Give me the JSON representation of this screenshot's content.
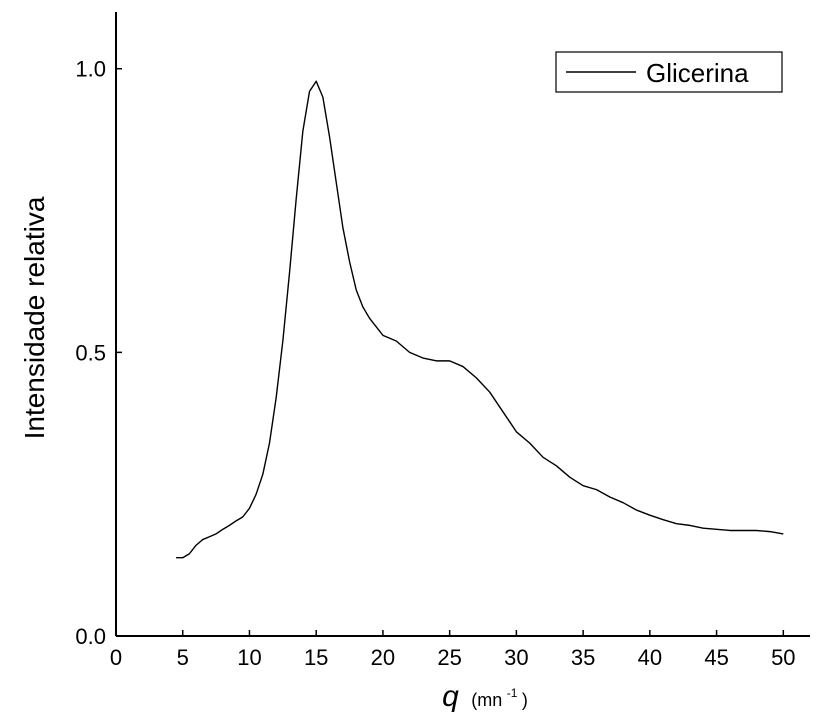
{
  "chart_data": {
    "type": "line",
    "title": "",
    "xlabel": "q",
    "xlabel_unit": "(mn",
    "xlabel_unit_sup": "-1",
    "xlabel_unit_close": ")",
    "ylabel": "Intensidade relativa",
    "xlim": [
      0,
      52
    ],
    "ylim": [
      0,
      1.1
    ],
    "x_ticks": [
      0,
      5,
      10,
      15,
      20,
      25,
      30,
      35,
      40,
      45,
      50
    ],
    "x_tick_labels": [
      "0",
      "5",
      "10",
      "15",
      "20",
      "25",
      "30",
      "35",
      "40",
      "45",
      "50"
    ],
    "y_ticks": [
      0,
      0.5,
      1.0
    ],
    "y_tick_labels": [
      "0.0",
      "0.5",
      "1.0"
    ],
    "grid": false,
    "legend_position": "top-right",
    "series": [
      {
        "name": "Glicerina",
        "color": "#000000",
        "x": [
          4.5,
          5.0,
          5.5,
          6.0,
          6.5,
          7.0,
          7.5,
          8.0,
          8.5,
          9.0,
          9.5,
          10.0,
          10.5,
          11.0,
          11.5,
          12.0,
          12.5,
          13.0,
          13.5,
          14.0,
          14.5,
          15.0,
          15.5,
          16.0,
          16.5,
          17.0,
          17.5,
          18.0,
          18.5,
          19.0,
          19.5,
          20.0,
          21.0,
          22.0,
          23.0,
          24.0,
          25.0,
          26.0,
          27.0,
          28.0,
          29.0,
          30.0,
          31.0,
          32.0,
          33.0,
          34.0,
          35.0,
          36.0,
          37.0,
          38.0,
          39.0,
          40.0,
          41.0,
          42.0,
          43.0,
          44.0,
          45.0,
          46.0,
          47.0,
          48.0,
          49.0,
          50.0
        ],
        "values": [
          0.138,
          0.138,
          0.145,
          0.16,
          0.17,
          0.175,
          0.18,
          0.188,
          0.195,
          0.203,
          0.21,
          0.225,
          0.25,
          0.285,
          0.34,
          0.42,
          0.52,
          0.64,
          0.77,
          0.89,
          0.96,
          0.978,
          0.95,
          0.88,
          0.8,
          0.72,
          0.66,
          0.61,
          0.58,
          0.56,
          0.545,
          0.53,
          0.52,
          0.5,
          0.49,
          0.485,
          0.485,
          0.475,
          0.455,
          0.43,
          0.395,
          0.36,
          0.34,
          0.315,
          0.3,
          0.28,
          0.265,
          0.258,
          0.245,
          0.235,
          0.222,
          0.213,
          0.205,
          0.198,
          0.195,
          0.19,
          0.188,
          0.186,
          0.186,
          0.186,
          0.184,
          0.18
        ]
      }
    ]
  }
}
